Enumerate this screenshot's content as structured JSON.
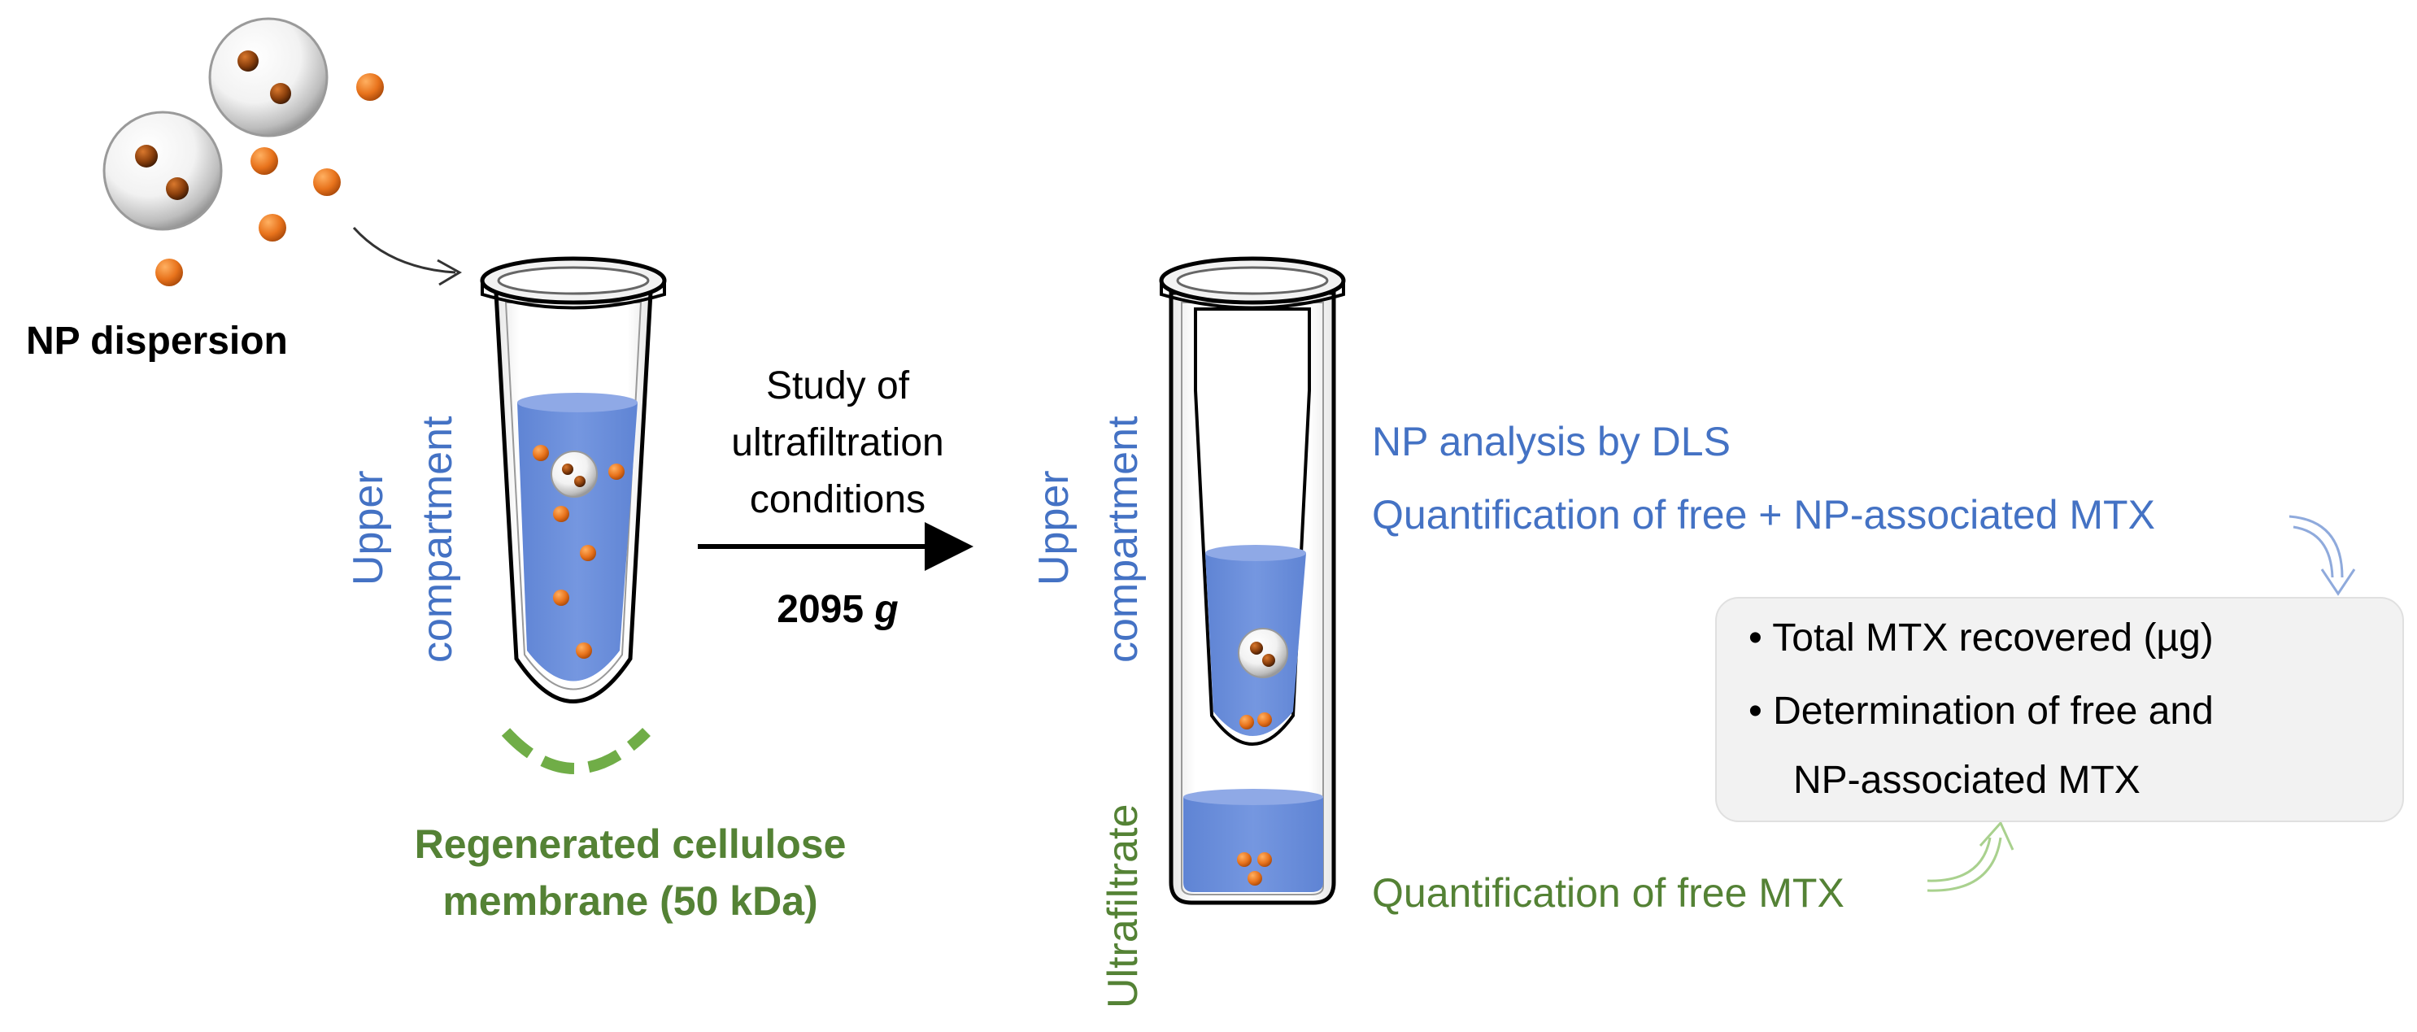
{
  "labels": {
    "np_dispersion": "NP dispersion",
    "upper_compartment_line1": "Upper",
    "upper_compartment_line2": "compartment",
    "study_line1": "Study of",
    "study_line2": "ultrafiltration",
    "study_line3": "conditions",
    "centrifugal_force_value": "2095",
    "centrifugal_force_unit": "g",
    "membrane_line1": "Regenerated cellulose",
    "membrane_line2": "membrane (50 kDa)",
    "ultrafiltrate": "Ultrafiltrate",
    "np_analysis": "NP analysis by DLS",
    "quant_free_np": "Quantification of free + NP-associated MTX",
    "quant_free": "Quantification of free MTX"
  },
  "results_box": {
    "bullet_1": "Total MTX recovered (µg)",
    "bullet_2_line1": "Determination of free and",
    "bullet_2_line2": "NP-associated MTX"
  },
  "colors": {
    "blue_label": "#4472C4",
    "green_label": "#548235",
    "membrane_green": "#70AD47",
    "liquid_blue": "#6A8CD6",
    "orange_particle": "#E8731C",
    "results_box_bg": "#F2F2F2"
  }
}
